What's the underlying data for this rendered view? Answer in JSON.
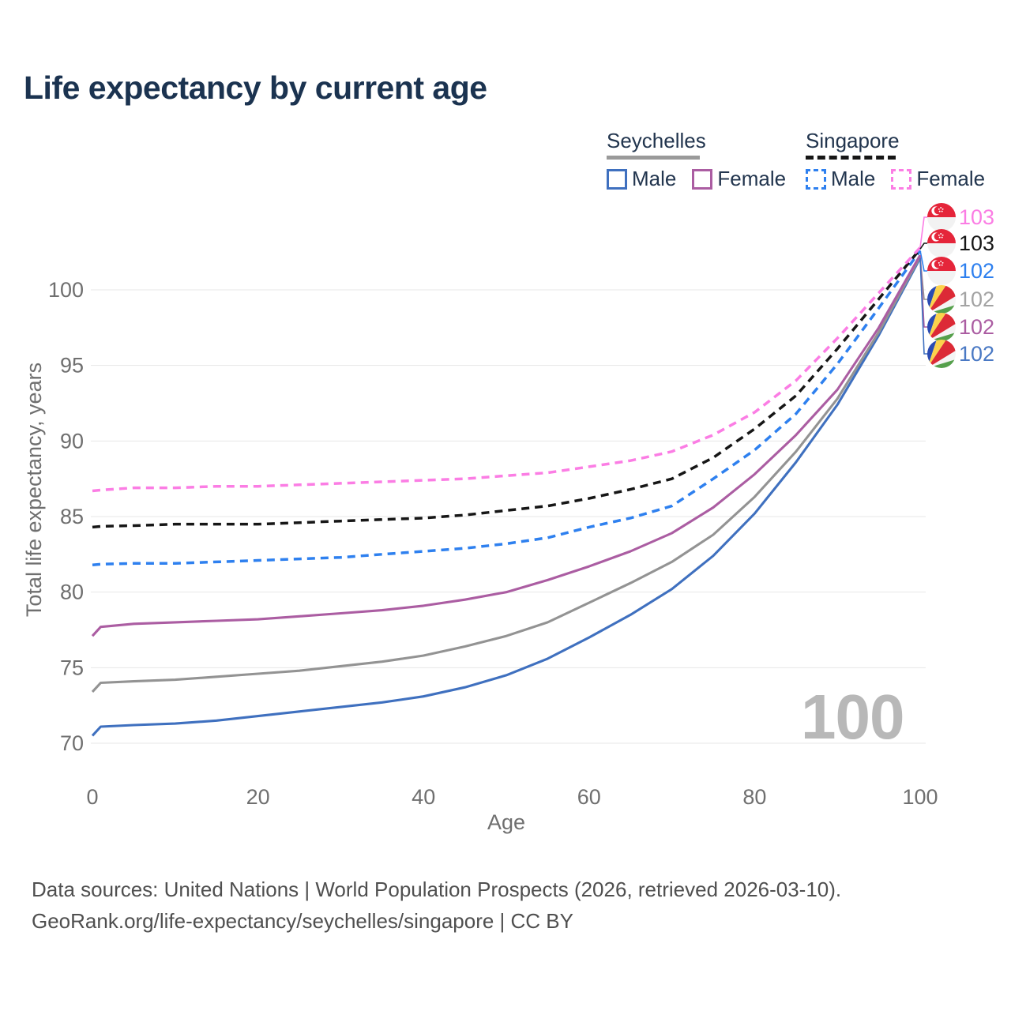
{
  "title": "Life expectancy by current age",
  "watermark": "100",
  "legend": {
    "groups": [
      {
        "name": "Seychelles",
        "line_style": "solid",
        "underline_color": "#9a9a9a",
        "items": [
          {
            "label": "Male",
            "color": "#3f70bf",
            "dash": false
          },
          {
            "label": "Female",
            "color": "#ab5da2",
            "dash": false
          }
        ]
      },
      {
        "name": "Singapore",
        "line_style": "dashed",
        "underline_color": "#161616",
        "items": [
          {
            "label": "Male",
            "color": "#2e80ef",
            "dash": true
          },
          {
            "label": "Female",
            "color": "#fb7de4",
            "dash": true
          }
        ]
      }
    ]
  },
  "footer": {
    "line1": "Data sources: United Nations | World Population Prospects (2026, retrieved 2026-03-10).",
    "line2": "GeoRank.org/life-expectancy/seychelles/singapore | CC BY"
  },
  "chart_data": {
    "type": "line",
    "title": "Life expectancy by current age",
    "xlabel": "Age",
    "ylabel": "Total life expectancy, years",
    "xlim": [
      0,
      100
    ],
    "ylim": [
      68.5,
      104
    ],
    "xticks": [
      0,
      20,
      40,
      60,
      80,
      100
    ],
    "yticks": [
      70,
      75,
      80,
      85,
      90,
      95,
      100
    ],
    "grid": "horizontal",
    "legend_position": "top-right",
    "x": [
      0,
      1,
      5,
      10,
      15,
      20,
      25,
      30,
      35,
      40,
      45,
      50,
      55,
      60,
      65,
      70,
      75,
      80,
      85,
      90,
      95,
      100
    ],
    "series": [
      {
        "name": "Singapore Female",
        "country": "Singapore",
        "sex": "Female",
        "color": "#fb7de4",
        "label_color": "#fb7de4",
        "dash": true,
        "end_label": "103",
        "flag": "singapore",
        "values": [
          86.7,
          86.75,
          86.9,
          86.9,
          87.0,
          87.0,
          87.1,
          87.2,
          87.3,
          87.4,
          87.5,
          87.7,
          87.9,
          88.3,
          88.7,
          89.3,
          90.4,
          91.9,
          94.0,
          96.8,
          99.8,
          102.8
        ]
      },
      {
        "name": "Singapore",
        "country": "Singapore",
        "sex": "Both",
        "color": "#161616",
        "label_color": "#161616",
        "dash": true,
        "end_label": "103",
        "flag": "singapore",
        "values": [
          84.3,
          84.35,
          84.4,
          84.5,
          84.5,
          84.5,
          84.6,
          84.7,
          84.8,
          84.9,
          85.1,
          85.4,
          85.7,
          86.2,
          86.8,
          87.5,
          88.9,
          90.8,
          93.0,
          96.1,
          99.4,
          102.7
        ]
      },
      {
        "name": "Singapore Male",
        "country": "Singapore",
        "sex": "Male",
        "color": "#2e80ef",
        "label_color": "#2e80ef",
        "dash": true,
        "end_label": "102",
        "flag": "singapore",
        "values": [
          81.8,
          81.85,
          81.9,
          81.9,
          82.0,
          82.1,
          82.2,
          82.3,
          82.5,
          82.7,
          82.9,
          83.2,
          83.6,
          84.3,
          84.9,
          85.7,
          87.5,
          89.4,
          91.8,
          95.1,
          98.8,
          102.6
        ]
      },
      {
        "name": "Seychelles",
        "country": "Seychelles",
        "sex": "Both",
        "color": "#939393",
        "label_color": "#a3a3a3",
        "dash": false,
        "end_label": "102",
        "flag": "seychelles",
        "values": [
          73.4,
          74.0,
          74.1,
          74.2,
          74.4,
          74.6,
          74.8,
          75.1,
          75.4,
          75.8,
          76.4,
          77.1,
          78.0,
          79.3,
          80.6,
          82.0,
          83.8,
          86.3,
          89.3,
          92.8,
          97.2,
          102.2
        ]
      },
      {
        "name": "Seychelles Female",
        "country": "Seychelles",
        "sex": "Female",
        "color": "#ab5da2",
        "label_color": "#ab5da2",
        "dash": false,
        "end_label": "102",
        "flag": "seychelles",
        "values": [
          77.1,
          77.7,
          77.9,
          78.0,
          78.1,
          78.2,
          78.4,
          78.6,
          78.8,
          79.1,
          79.5,
          80.0,
          80.8,
          81.7,
          82.7,
          83.9,
          85.6,
          87.8,
          90.4,
          93.4,
          97.5,
          102.3
        ]
      },
      {
        "name": "Seychelles Male",
        "country": "Seychelles",
        "sex": "Male",
        "color": "#3f70bf",
        "label_color": "#4a79c4",
        "dash": false,
        "end_label": "102",
        "flag": "seychelles",
        "values": [
          70.5,
          71.1,
          71.2,
          71.3,
          71.5,
          71.8,
          72.1,
          72.4,
          72.7,
          73.1,
          73.7,
          74.5,
          75.6,
          77.0,
          78.5,
          80.2,
          82.4,
          85.2,
          88.6,
          92.4,
          97.0,
          102.1
        ]
      }
    ]
  }
}
